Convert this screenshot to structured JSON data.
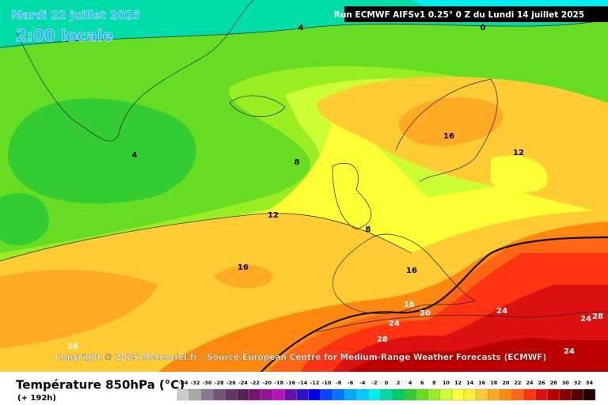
{
  "header": {
    "date": "Mardi 22 juillet 2025",
    "time": "2:00 locale",
    "run": "Run ECMWF AIFSv1 0.25° 0 Z du Lundi 14 juillet 2025"
  },
  "copyright": "Copyright © 2025 Meteociel.fr - Source European Centre for Medium-Range Weather Forecasts (ECMWF)",
  "contour_labels": [
    "4",
    "0",
    "4",
    "8",
    "16",
    "12",
    "12",
    "8",
    "16",
    "16",
    "16",
    "20",
    "24",
    "24",
    "24",
    "28",
    "28",
    "24",
    "16"
  ],
  "legend": {
    "title": "Température 850hPa (°C)",
    "subtitle": "(+ 192h)",
    "scale": [
      -34,
      -32,
      -30,
      -28,
      -26,
      -24,
      -22,
      -20,
      -18,
      -16,
      -14,
      -12,
      -10,
      -8,
      -6,
      -4,
      -2,
      0,
      2,
      4,
      6,
      8,
      10,
      12,
      14,
      16,
      18,
      20,
      22,
      24,
      26,
      28,
      30,
      32,
      34
    ],
    "colors": [
      "#cccccc",
      "#aaaaaa",
      "#887799",
      "#775577",
      "#663366",
      "#552255",
      "#771177",
      "#991199",
      "#bb11bb",
      "#6611aa",
      "#3311cc",
      "#0000ee",
      "#0044ff",
      "#0077ff",
      "#00aaff",
      "#00ccff",
      "#00eeee",
      "#00ddaa",
      "#00cc66",
      "#33cc33",
      "#66dd22",
      "#99ee22",
      "#ccff33",
      "#ffff33",
      "#ffee33",
      "#ffcc33",
      "#ffaa22",
      "#ff8811",
      "#ff6611",
      "#ff3311",
      "#dd1111",
      "#bb0000",
      "#880000",
      "#550000",
      "#220000"
    ]
  }
}
